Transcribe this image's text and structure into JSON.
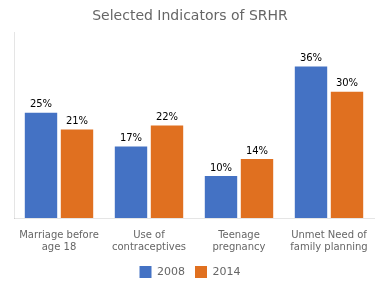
{
  "chart_data": {
    "type": "bar",
    "title": "Selected Indicators of SRHR",
    "categories": [
      "Marriage before\nage 18",
      "Use of\ncontraceptives",
      "Teenage\npregnancy",
      "Unmet Need of\nfamily planning"
    ],
    "series": [
      {
        "name": "2008",
        "color": "#4472C4",
        "values": [
          25,
          17,
          10,
          36
        ],
        "value_labels": [
          "25%",
          "17%",
          "10%",
          "36%"
        ]
      },
      {
        "name": "2014",
        "color": "#E07020",
        "values": [
          21,
          22,
          14,
          30
        ],
        "value_labels": [
          "21%",
          "22%",
          "14%",
          "30%"
        ]
      }
    ],
    "ylim": [
      0,
      44
    ],
    "grid": false,
    "legend": "bottom",
    "data_labels": true,
    "tick_labels": "x"
  }
}
